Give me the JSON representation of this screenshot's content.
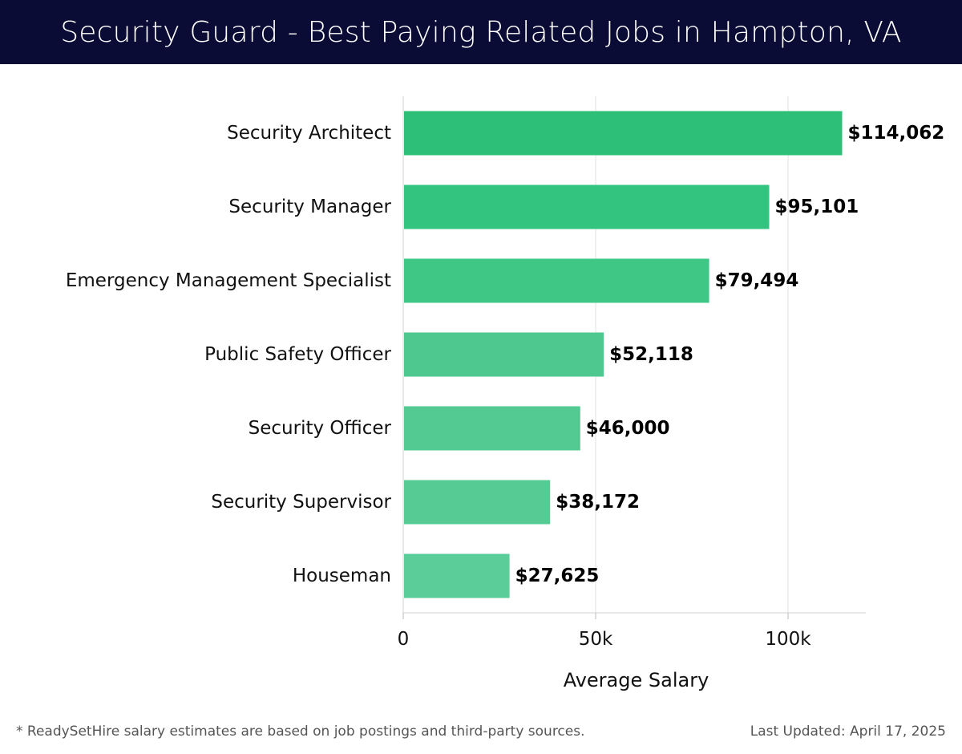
{
  "header": {
    "title": "Security Guard - Best Paying Related Jobs in Hampton, VA"
  },
  "chart_data": {
    "type": "bar",
    "orientation": "horizontal",
    "categories": [
      "Security Architect",
      "Security Manager",
      "Emergency Management Specialist",
      "Public Safety Officer",
      "Security Officer",
      "Security Supervisor",
      "Houseman"
    ],
    "values": [
      114062,
      95101,
      79494,
      52118,
      46000,
      38172,
      27625
    ],
    "value_labels": [
      "$114,062",
      "$95,101",
      "$79,494",
      "$52,118",
      "$46,000",
      "$38,172",
      "$27,625"
    ],
    "bar_colors": [
      "#2dbf78",
      "#33c47f",
      "#3ec785",
      "#4ec88f",
      "#52ca91",
      "#57cb94",
      "#5bcd98"
    ],
    "xlabel": "Average Salary",
    "xlim": [
      0,
      120000
    ],
    "xticks": [
      0,
      50000,
      100000
    ],
    "xtick_labels": [
      "0",
      "50k",
      "100k"
    ],
    "grid": "vertical"
  },
  "footer": {
    "note": "* ReadySetHire salary estimates are based on job postings and third-party sources.",
    "updated": "Last Updated: April 17, 2025"
  }
}
